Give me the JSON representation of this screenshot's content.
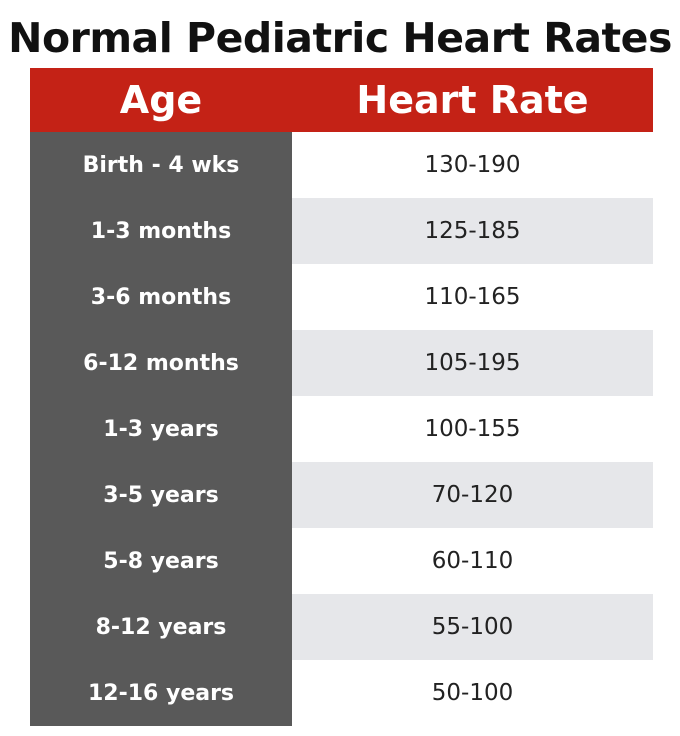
{
  "title": "Normal Pediatric Heart Rates",
  "header": {
    "age": "Age",
    "heart_rate": "Heart Rate"
  },
  "rows": [
    {
      "age": "Birth - 4 wks",
      "rate": "130-190"
    },
    {
      "age": "1-3 months",
      "rate": "125-185"
    },
    {
      "age": "3-6 months",
      "rate": "110-165"
    },
    {
      "age": "6-12 months",
      "rate": "105-195"
    },
    {
      "age": "1-3 years",
      "rate": "100-155"
    },
    {
      "age": "3-5 years",
      "rate": "70-120"
    },
    {
      "age": "5-8 years",
      "rate": "60-110"
    },
    {
      "age": "8-12 years",
      "rate": "55-100"
    },
    {
      "age": "12-16 years",
      "rate": "50-100"
    }
  ],
  "colors": {
    "header_bg": "#c42216",
    "age_column_bg": "#595959",
    "alt_row_bg": "#e6e7ea"
  }
}
